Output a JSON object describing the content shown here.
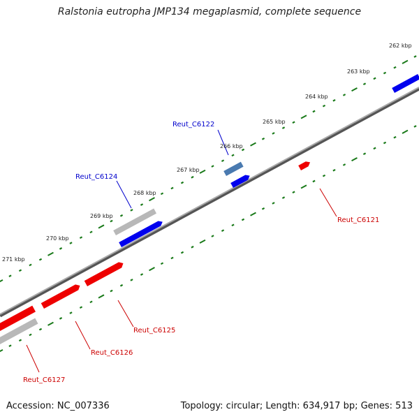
{
  "title": "Ralstonia eutropha JMP134 megaplasmid, complete sequence",
  "footer": {
    "accession": "Accession: NC_007336",
    "topology": "Topology: circular; Length: 634,917 bp; Genes: 513"
  },
  "colors": {
    "backbone": "#8a8a8a",
    "ticks": "#1a7a1a",
    "forward_gene": "#0000ee",
    "reverse_gene": "#ee0000",
    "grey_gene": "#b8b8b8",
    "steel_gene": "#4a7ab0",
    "forward_label": "#0000cc",
    "reverse_label": "#cc0000"
  },
  "kbp_labels": [
    "262 kbp",
    "263 kbp",
    "264 kbp",
    "265 kbp",
    "266 kbp",
    "267 kbp",
    "268 kbp",
    "269 kbp",
    "270 kbp",
    "271 kbp"
  ],
  "genes": [
    {
      "id": "Reut_C6122",
      "label": "Reut_C6122",
      "strand": "forward"
    },
    {
      "id": "Reut_C6124",
      "label": "Reut_C6124",
      "strand": "forward"
    },
    {
      "id": "Reut_C6121",
      "label": "Reut_C6121",
      "strand": "reverse"
    },
    {
      "id": "Reut_C6125",
      "label": "Reut_C6125",
      "strand": "reverse"
    },
    {
      "id": "Reut_C6126",
      "label": "Reut_C6126",
      "strand": "reverse"
    },
    {
      "id": "Reut_C6127",
      "label": "Reut_C6127",
      "strand": "reverse"
    }
  ]
}
